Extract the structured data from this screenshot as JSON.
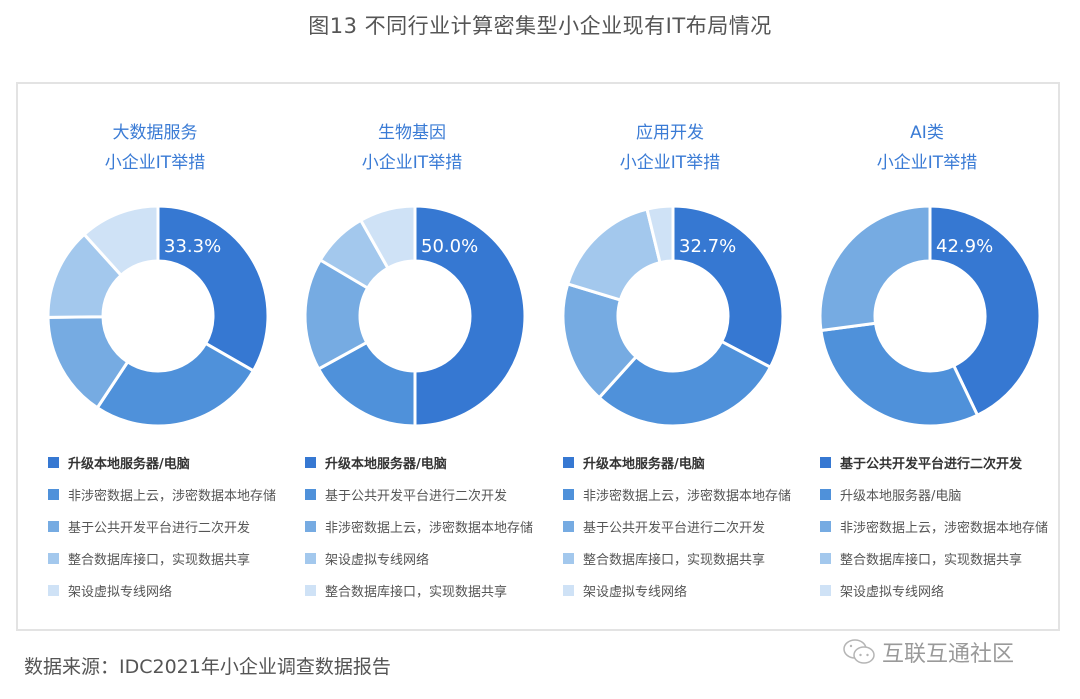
{
  "figure": {
    "title": "图13  不同行业计算密集型小企业现有IT布局情况",
    "source": "数据来源：IDC2021年小企业调查数据报告",
    "watermark": "互联互通社区"
  },
  "colors": [
    "#3678d2",
    "#4f91da",
    "#76abe2",
    "#a3c8ed",
    "#cfe2f6"
  ],
  "chart_data": [
    {
      "type": "pie",
      "title": "大数据服务 小企业IT举措",
      "title_line1": "大数据服务",
      "title_line2": "小企业IT举措",
      "labels": [
        "升级本地服务器/电脑",
        "非涉密数据上云，涉密数据本地存储",
        "基于公共开发平台进行二次开发",
        "整合数据库接口，实现数据共享",
        "架设虚拟专线网络"
      ],
      "values": [
        33.3,
        26.0,
        15.5,
        13.5,
        11.7
      ],
      "label_shown": "33.3%",
      "donut": true
    },
    {
      "type": "pie",
      "title": "生物基因 小企业IT举措",
      "title_line1": "生物基因",
      "title_line2": "小企业IT举措",
      "labels": [
        "升级本地服务器/电脑",
        "基于公共开发平台进行二次开发",
        "非涉密数据上云，涉密数据本地存储",
        "架设虚拟专线网络",
        "整合数据库接口，实现数据共享"
      ],
      "values": [
        50.0,
        17.0,
        16.5,
        8.3,
        8.2
      ],
      "label_shown": "50.0%",
      "donut": true
    },
    {
      "type": "pie",
      "title": "应用开发 小企业IT举措",
      "title_line1": "应用开发",
      "title_line2": "小企业IT举措",
      "labels": [
        "升级本地服务器/电脑",
        "非涉密数据上云，涉密数据本地存储",
        "基于公共开发平台进行二次开发",
        "整合数据库接口，实现数据共享",
        "架设虚拟专线网络"
      ],
      "values": [
        32.7,
        29.0,
        18.0,
        16.5,
        3.8
      ],
      "label_shown": "32.7%",
      "donut": true
    },
    {
      "type": "pie",
      "title": "AI类 小企业IT举措",
      "title_line1": "AI类",
      "title_line2": "小企业IT举措",
      "labels": [
        "基于公共开发平台进行二次开发",
        "升级本地服务器/电脑",
        "非涉密数据上云，涉密数据本地存储",
        "整合数据库接口，实现数据共享",
        "架设虚拟专线网络"
      ],
      "values": [
        42.9,
        30.0,
        27.1,
        0,
        0
      ],
      "label_shown": "42.9%",
      "donut": true
    }
  ]
}
